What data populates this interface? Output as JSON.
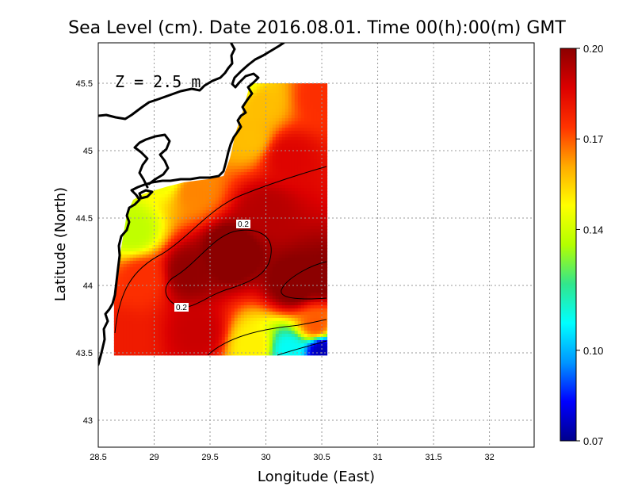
{
  "chart_data": {
    "type": "heatmap",
    "title": "Sea Level (cm). Date 2016.08.01. Time 00(h):00(m) GMT",
    "xlabel": "Longitude (East)",
    "ylabel": "Latitude (North)",
    "xlim": [
      28.5,
      32.4
    ],
    "ylim": [
      42.8,
      45.8
    ],
    "x_ticks": [
      {
        "value": 28.5,
        "label": "28.5"
      },
      {
        "value": 29,
        "label": "29"
      },
      {
        "value": 29.5,
        "label": "29.5"
      },
      {
        "value": 30,
        "label": "30"
      },
      {
        "value": 30.5,
        "label": "30.5"
      },
      {
        "value": 31,
        "label": "31"
      },
      {
        "value": 31.5,
        "label": "31.5"
      },
      {
        "value": 32,
        "label": "32"
      }
    ],
    "y_ticks": [
      {
        "value": 43,
        "label": "43"
      },
      {
        "value": 43.5,
        "label": "43.5"
      },
      {
        "value": 44,
        "label": "44"
      },
      {
        "value": 44.5,
        "label": "44.5"
      },
      {
        "value": 45,
        "label": "45"
      },
      {
        "value": 45.5,
        "label": "45.5"
      }
    ],
    "grid": true,
    "annotation": "Z = 2.5 m",
    "field_extent": {
      "lon": [
        28.64,
        30.55
      ],
      "lat": [
        43.48,
        45.5
      ]
    },
    "field_points": [
      {
        "lon": 29.68,
        "lat": 44.25,
        "value": 0.205
      },
      {
        "lon": 29.3,
        "lat": 44.1,
        "value": 0.199
      },
      {
        "lon": 30.25,
        "lat": 44.0,
        "value": 0.203
      },
      {
        "lon": 30.5,
        "lat": 44.05,
        "value": 0.201
      },
      {
        "lon": 30.0,
        "lat": 44.55,
        "value": 0.193
      },
      {
        "lon": 30.2,
        "lat": 44.95,
        "value": 0.186
      },
      {
        "lon": 30.5,
        "lat": 45.4,
        "value": 0.175
      },
      {
        "lon": 29.95,
        "lat": 45.35,
        "value": 0.158
      },
      {
        "lon": 29.8,
        "lat": 45.5,
        "value": 0.147
      },
      {
        "lon": 29.85,
        "lat": 45.1,
        "value": 0.158
      },
      {
        "lon": 29.35,
        "lat": 44.7,
        "value": 0.165
      },
      {
        "lon": 29.1,
        "lat": 44.8,
        "value": 0.146
      },
      {
        "lon": 28.82,
        "lat": 44.4,
        "value": 0.137
      },
      {
        "lon": 28.9,
        "lat": 44.05,
        "value": 0.175
      },
      {
        "lon": 28.72,
        "lat": 43.6,
        "value": 0.18
      },
      {
        "lon": 29.4,
        "lat": 43.65,
        "value": 0.19
      },
      {
        "lon": 29.9,
        "lat": 43.55,
        "value": 0.15
      },
      {
        "lon": 30.2,
        "lat": 43.52,
        "value": 0.11
      },
      {
        "lon": 30.5,
        "lat": 43.52,
        "value": 0.075
      },
      {
        "lon": 30.45,
        "lat": 43.7,
        "value": 0.17
      }
    ],
    "contours": [
      {
        "value": 0.2,
        "label": "0.2"
      },
      {
        "value": 0.2,
        "label": "0.2"
      }
    ],
    "colorbar": {
      "range": [
        0.07,
        0.2
      ],
      "ticks": [
        "0.20",
        "0.17",
        "0.14",
        "0.10",
        "0.07"
      ],
      "stops": [
        "#00008c",
        "#0000ff",
        "#0096ff",
        "#00ffff",
        "#32e68c",
        "#b4ff00",
        "#ffff00",
        "#ffaa00",
        "#ff3200",
        "#dc0000",
        "#8c0000"
      ]
    },
    "land_color": "#ffffff",
    "coast_color": "#000000",
    "contour_color": "#000000"
  }
}
